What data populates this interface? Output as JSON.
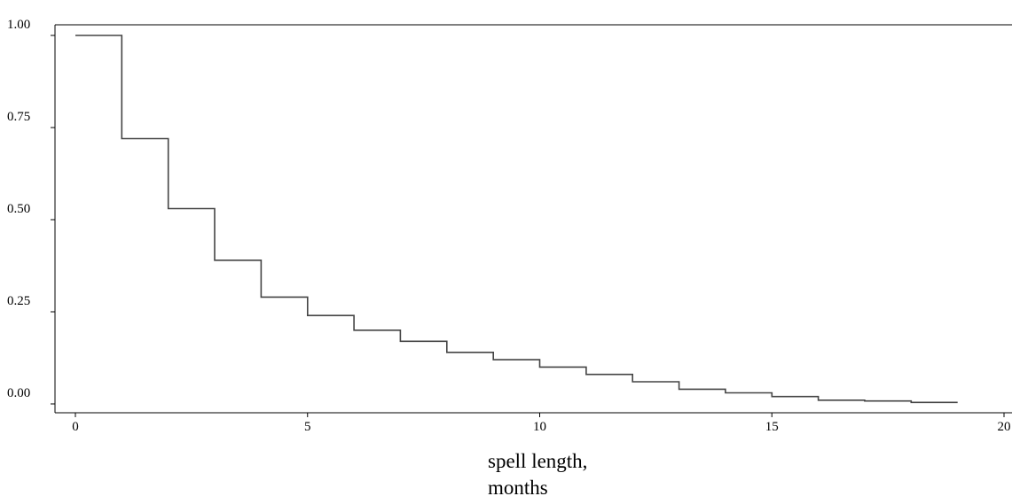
{
  "chart_data": {
    "type": "line",
    "step": true,
    "title": "",
    "xlabel_lines": [
      "spell length,",
      "months"
    ],
    "ylabel": "",
    "xlim": [
      0,
      20
    ],
    "ylim": [
      0,
      1
    ],
    "xticks": [
      0,
      5,
      10,
      15,
      20
    ],
    "xtick_labels": [
      "0",
      "5",
      "10",
      "15",
      "20"
    ],
    "yticks": [
      0,
      0.25,
      0.5,
      0.75,
      1.0
    ],
    "ytick_labels": [
      "0.00",
      "0.25",
      "0.50",
      "0.75",
      "1.00"
    ],
    "grid": false,
    "line_color": "#444444",
    "series": [
      {
        "x": [
          0,
          1,
          2,
          3,
          4,
          5,
          6,
          7,
          8,
          9,
          10,
          11,
          12,
          13,
          14,
          15,
          16,
          17,
          18,
          19
        ],
        "values": [
          1.0,
          0.72,
          0.53,
          0.39,
          0.29,
          0.24,
          0.2,
          0.17,
          0.14,
          0.12,
          0.1,
          0.08,
          0.06,
          0.04,
          0.03,
          0.02,
          0.01,
          0.008,
          0.004,
          0.004
        ]
      }
    ]
  }
}
